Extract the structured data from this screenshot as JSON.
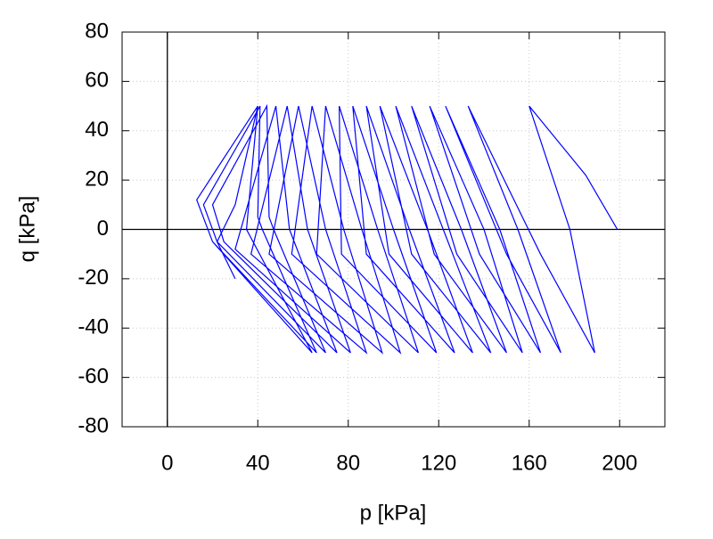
{
  "chart_data": {
    "type": "line",
    "xlabel": "p [kPa]",
    "ylabel": "q [kPa]",
    "x": [
      199,
      185,
      160,
      178,
      189,
      165,
      133,
      155,
      174,
      150,
      123,
      147,
      165,
      138,
      116,
      140,
      157,
      128,
      108,
      130,
      150,
      118,
      101,
      122,
      143,
      108,
      94,
      115,
      135,
      98,
      88,
      107,
      127,
      88,
      82,
      100,
      119,
      77,
      76,
      93,
      111,
      66,
      70,
      86,
      103,
      55,
      64,
      78,
      95,
      45,
      58,
      70,
      88,
      37,
      53,
      62,
      81,
      30,
      48,
      54,
      75,
      25,
      20,
      44,
      45,
      47,
      70,
      22,
      16,
      41,
      40,
      42,
      66,
      20,
      13,
      40,
      35,
      64,
      20,
      13,
      40,
      30,
      22,
      30
    ],
    "series": [
      {
        "color": "#0000ff",
        "values": [
          0,
          22,
          50,
          0,
          -50,
          -10,
          50,
          0,
          -50,
          -10,
          50,
          0,
          -50,
          -10,
          50,
          0,
          -50,
          -10,
          50,
          0,
          -50,
          -10,
          50,
          0,
          -50,
          -10,
          50,
          0,
          -50,
          -10,
          50,
          0,
          -50,
          -10,
          50,
          0,
          -50,
          -10,
          50,
          0,
          -50,
          -10,
          50,
          0,
          -50,
          -10,
          50,
          0,
          -50,
          -10,
          50,
          0,
          -50,
          -10,
          50,
          0,
          -50,
          -8,
          50,
          0,
          -50,
          -5,
          10,
          50,
          5,
          0,
          -50,
          -5,
          10,
          50,
          5,
          0,
          -50,
          -5,
          12,
          50,
          0,
          -50,
          -5,
          12,
          50,
          10,
          -5,
          -20
        ]
      }
    ],
    "xlim": [
      -20,
      220
    ],
    "xticks": [
      0,
      40,
      80,
      120,
      160,
      200
    ],
    "ylim": [
      -80,
      80
    ],
    "yticks": [
      -80,
      -60,
      -40,
      -20,
      0,
      20,
      40,
      60,
      80
    ],
    "grid": true,
    "zero_axes": true
  }
}
